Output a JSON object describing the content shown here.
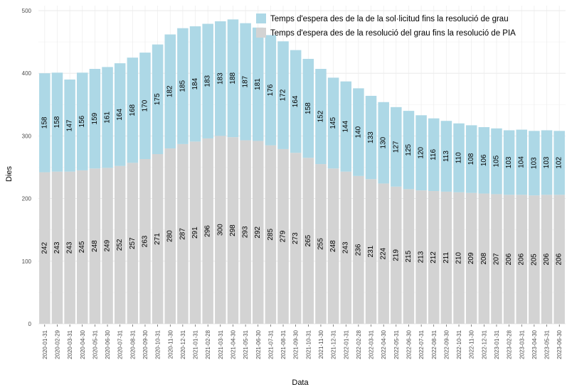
{
  "chart_data": {
    "type": "bar",
    "stacked": true,
    "title": "",
    "xlabel": "Data",
    "ylabel": "Dies",
    "ylim": [
      0,
      500
    ],
    "yticks": [
      0,
      100,
      200,
      300,
      400,
      500
    ],
    "grid": true,
    "legend_position": "top-right",
    "categories": [
      "2020-01-31",
      "2020-02-29",
      "2020-03-31",
      "2020-04-30",
      "2020-05-31",
      "2020-06-30",
      "2020-07-31",
      "2020-08-31",
      "2020-09-30",
      "2020-10-31",
      "2020-11-30",
      "2020-12-31",
      "2021-01-31",
      "2021-02-28",
      "2021-03-31",
      "2021-04-30",
      "2021-05-31",
      "2021-06-30",
      "2021-07-31",
      "2021-08-31",
      "2021-09-30",
      "2021-10-31",
      "2021-11-30",
      "2021-12-31",
      "2022-01-31",
      "2022-02-28",
      "2022-03-31",
      "2022-04-30",
      "2022-05-31",
      "2022-06-30",
      "2022-07-31",
      "2022-08-31",
      "2022-09-30",
      "2022-10-31",
      "2022-11-30",
      "2022-12-31",
      "2023-01-31",
      "2023-02-28",
      "2023-03-31",
      "2023-04-30",
      "2023-05-31",
      "2023-06-30"
    ],
    "series": [
      {
        "name": "Temps d'espera des de la resolució del grau fins la resolució de PIA",
        "color": "#d3d3d3",
        "values": [
          242,
          243,
          243,
          245,
          248,
          249,
          252,
          257,
          263,
          271,
          280,
          287,
          291,
          296,
          300,
          298,
          293,
          292,
          285,
          279,
          273,
          265,
          255,
          248,
          243,
          236,
          231,
          224,
          219,
          215,
          213,
          212,
          211,
          210,
          209,
          208,
          207,
          206,
          206,
          205,
          206,
          206
        ]
      },
      {
        "name": "Temps d'espera des de la de la sol·licitud fins la resolució de grau",
        "color": "#add8e6",
        "values": [
          158,
          158,
          147,
          156,
          159,
          161,
          164,
          168,
          170,
          175,
          182,
          185,
          184,
          183,
          183,
          188,
          187,
          181,
          176,
          172,
          164,
          158,
          152,
          145,
          144,
          140,
          133,
          130,
          127,
          125,
          120,
          116,
          113,
          110,
          108,
          106,
          105,
          103,
          104,
          103,
          103,
          102
        ]
      }
    ],
    "legend": [
      {
        "label": "Temps d'espera des de la de la sol·licitud fins la resolució de grau",
        "color": "#add8e6"
      },
      {
        "label": "Temps d'espera des de la resolució del grau fins la resolució de PIA",
        "color": "#d3d3d3"
      }
    ]
  }
}
